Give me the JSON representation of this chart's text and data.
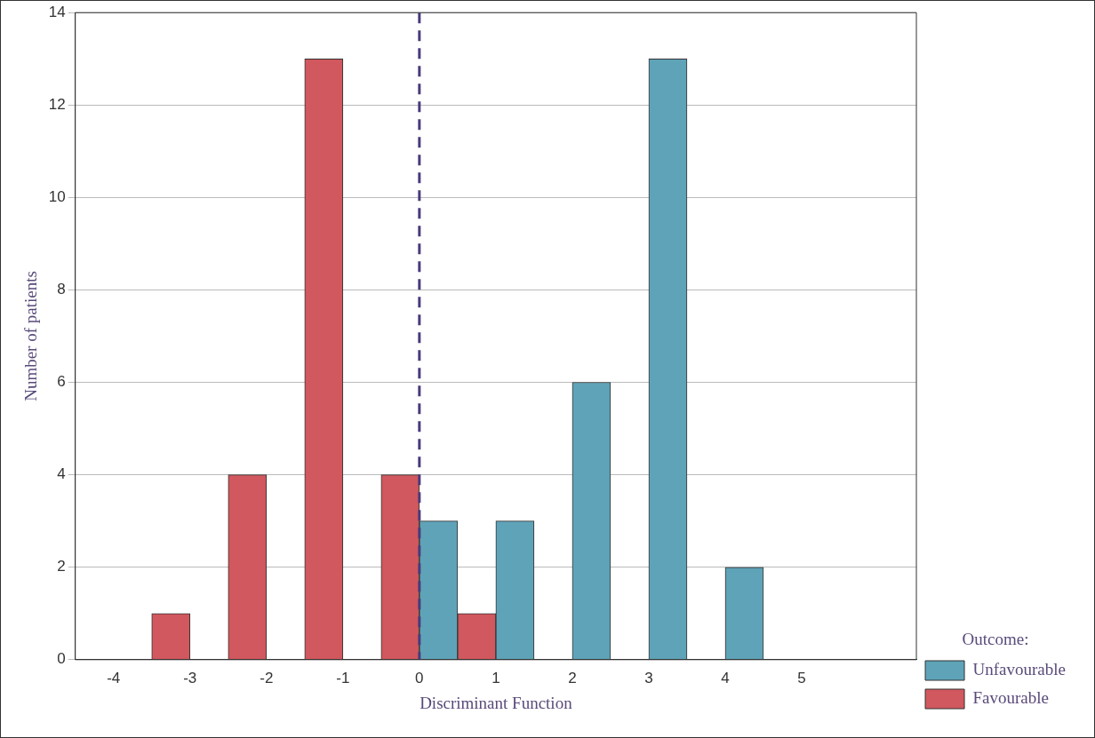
{
  "chart_data": {
    "type": "bar",
    "xlabel": "Discriminant Function",
    "ylabel": "Number of patients",
    "legend_title": "Outcome:",
    "categories": [
      "-4",
      "-3",
      "-2",
      "-1",
      "0",
      "1",
      "2",
      "3",
      "4",
      "5",
      null
    ],
    "series": [
      {
        "name": "Favourable",
        "color": "#d0585e",
        "values": [
          0,
          1,
          4,
          13,
          4,
          1,
          0,
          0,
          0,
          0,
          0
        ]
      },
      {
        "name": "Unfavourable",
        "color": "#5fa3b8",
        "values": [
          0,
          0,
          0,
          0,
          3,
          3,
          6,
          13,
          2,
          0,
          0
        ]
      }
    ],
    "ylim": [
      0,
      14
    ],
    "yticks": [
      0,
      2,
      4,
      6,
      8,
      10,
      12,
      14
    ],
    "grid": "y",
    "legend": "bottom right",
    "ref_lines": [
      {
        "axis": "x",
        "value": "0",
        "color": "#4a3a7a",
        "line_style": "dashed"
      }
    ]
  }
}
